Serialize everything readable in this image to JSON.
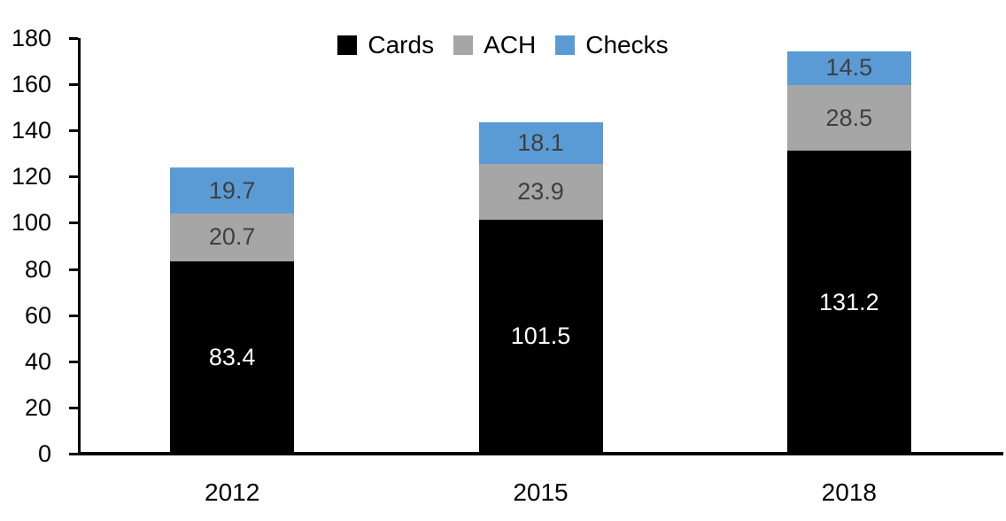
{
  "chart_data": {
    "type": "bar",
    "stacked": true,
    "title": "",
    "xlabel": "",
    "ylabel": "",
    "categories": [
      "2012",
      "2015",
      "2018"
    ],
    "series": [
      {
        "name": "Cards",
        "color": "#000000",
        "label_color": "#FFFFFF",
        "values": [
          83.4,
          101.5,
          131.2
        ]
      },
      {
        "name": "ACH",
        "color": "#A6A6A6",
        "label_color": "#3F3F3F",
        "values": [
          20.7,
          23.9,
          28.5
        ]
      },
      {
        "name": "Checks",
        "color": "#5B9BD5",
        "label_color": "#3F3F3F",
        "values": [
          19.7,
          18.1,
          14.5
        ]
      }
    ],
    "ylim": [
      0,
      180
    ],
    "yticks": [
      0,
      20,
      40,
      60,
      80,
      100,
      120,
      140,
      160,
      180
    ],
    "grid": false,
    "legend_position": "top-center",
    "axis_color": "#000000",
    "bar_labels_visible": true,
    "value_decimals": 1
  }
}
